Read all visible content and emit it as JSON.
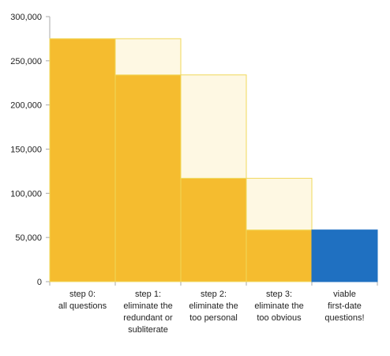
{
  "chart_data": {
    "type": "bar",
    "categories": [
      [
        "step 0:",
        "all questions"
      ],
      [
        "step 1:",
        "eliminate the",
        "redundant or",
        "subliterate"
      ],
      [
        "step 2:",
        "eliminate the",
        "too personal"
      ],
      [
        "step 3:",
        "eliminate the",
        "too obvious"
      ],
      [
        "viable",
        "first-date",
        "questions!"
      ]
    ],
    "series": [
      {
        "values": [
          275000,
          234000,
          117000,
          58500,
          58500
        ]
      },
      {
        "values": [
          0,
          41000,
          117000,
          58500,
          0
        ]
      }
    ],
    "ylim": [
      0,
      300000
    ],
    "yticks": [
      0,
      50000,
      100000,
      150000,
      200000,
      250000,
      300000
    ],
    "ytick_labels": [
      "0",
      "50,000",
      "100,000",
      "150,000",
      "200,000",
      "250,000",
      "300,000"
    ],
    "grid": false,
    "colors": {
      "remaining": "#F5BC2F",
      "eliminated": "#FEF8E3",
      "final": "#1F70C1",
      "bar_outline": "#F0D85A",
      "axis": "#a8a8a8"
    }
  }
}
